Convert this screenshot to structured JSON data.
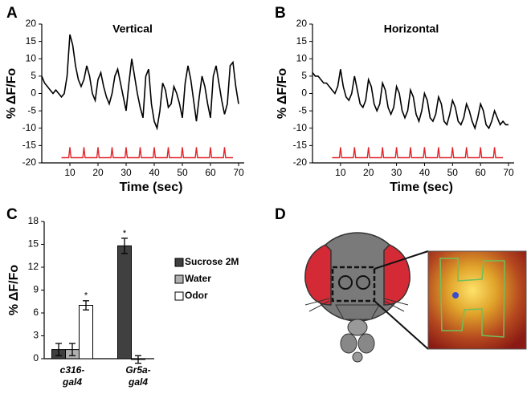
{
  "panels": [
    "A",
    "B",
    "C",
    "D"
  ],
  "chart_data": [
    {
      "type": "line",
      "title": "Vertical",
      "xlabel": "Time (sec)",
      "ylabel": "% ΔF/Fo",
      "xlim": [
        0,
        72
      ],
      "xticks": [
        10,
        20,
        30,
        40,
        50,
        60,
        70
      ],
      "ylim": [
        -20,
        20
      ],
      "yticks": [
        -20,
        -15,
        -10,
        -5,
        0,
        5,
        10,
        15,
        20
      ],
      "series": [
        {
          "color": "#000000",
          "x": [
            0,
            1,
            2,
            3,
            4,
            5,
            6,
            7,
            8,
            9,
            10,
            11,
            12,
            13,
            14,
            15,
            16,
            17,
            18,
            19,
            20,
            21,
            22,
            23,
            24,
            25,
            26,
            27,
            28,
            29,
            30,
            31,
            32,
            33,
            34,
            35,
            36,
            37,
            38,
            39,
            40,
            41,
            42,
            43,
            44,
            45,
            46,
            47,
            48,
            49,
            50,
            51,
            52,
            53,
            54,
            55,
            56,
            57,
            58,
            59,
            60,
            61,
            62,
            63,
            64,
            65,
            66,
            67,
            68,
            69,
            70
          ],
          "values": [
            5,
            3,
            2,
            1,
            0,
            1,
            0,
            -1,
            0,
            5,
            17,
            14,
            8,
            4,
            2,
            4,
            8,
            5,
            0,
            -2,
            4,
            6,
            2,
            -1,
            -3,
            0,
            5,
            7,
            3,
            -1,
            -5,
            3,
            10,
            5,
            0,
            -4,
            -7,
            5,
            7,
            -3,
            -8,
            -10,
            -5,
            3,
            1,
            -4,
            -3,
            2,
            0,
            -3,
            -7,
            3,
            8,
            4,
            -2,
            -8,
            -1,
            5,
            2,
            -3,
            -7,
            5,
            8,
            3,
            -2,
            -6,
            -3,
            8,
            9,
            2,
            -3
          ]
        },
        {
          "color": "#e0262b",
          "x": [
            7,
            9.6,
            10,
            10.4,
            14.6,
            15,
            15.4,
            19.6,
            20,
            20.4,
            24.6,
            25,
            25.4,
            29.6,
            30,
            30.4,
            34.6,
            35,
            35.4,
            39.6,
            40,
            40.4,
            44.6,
            45,
            45.4,
            49.6,
            50,
            50.4,
            54.6,
            55,
            55.4,
            59.6,
            60,
            60.4,
            64.6,
            65,
            65.4,
            68
          ],
          "values": [
            -18.5,
            -18.5,
            -15.5,
            -18.5,
            -18.5,
            -15.5,
            -18.5,
            -18.5,
            -15.5,
            -18.5,
            -18.5,
            -15.5,
            -18.5,
            -18.5,
            -15.5,
            -18.5,
            -18.5,
            -15.5,
            -18.5,
            -18.5,
            -15.5,
            -18.5,
            -18.5,
            -15.5,
            -18.5,
            -18.5,
            -15.5,
            -18.5,
            -18.5,
            -15.5,
            -18.5,
            -18.5,
            -15.5,
            -18.5,
            -18.5,
            -15.5,
            -18.5,
            -18.5
          ]
        }
      ]
    },
    {
      "type": "line",
      "title": "Horizontal",
      "xlabel": "Time (sec)",
      "ylabel": "% ΔF/Fo",
      "xlim": [
        0,
        72
      ],
      "xticks": [
        10,
        20,
        30,
        40,
        50,
        60,
        70
      ],
      "ylim": [
        -20,
        20
      ],
      "yticks": [
        -20,
        -15,
        -10,
        -5,
        0,
        5,
        10,
        15,
        20
      ],
      "series": [
        {
          "color": "#000000",
          "x": [
            0,
            1,
            2,
            3,
            4,
            5,
            6,
            7,
            8,
            9,
            10,
            11,
            12,
            13,
            14,
            15,
            16,
            17,
            18,
            19,
            20,
            21,
            22,
            23,
            24,
            25,
            26,
            27,
            28,
            29,
            30,
            31,
            32,
            33,
            34,
            35,
            36,
            37,
            38,
            39,
            40,
            41,
            42,
            43,
            44,
            45,
            46,
            47,
            48,
            49,
            50,
            51,
            52,
            53,
            54,
            55,
            56,
            57,
            58,
            59,
            60,
            61,
            62,
            63,
            64,
            65,
            66,
            67,
            68,
            69,
            70
          ],
          "values": [
            6,
            5,
            5,
            4,
            3,
            3,
            2,
            1,
            0,
            2,
            7,
            2,
            -1,
            -2,
            0,
            5,
            1,
            -3,
            -4,
            -2,
            4,
            2,
            -3,
            -5,
            -3,
            3,
            1,
            -4,
            -6,
            -4,
            2,
            0,
            -5,
            -7,
            -5,
            1,
            -1,
            -6,
            -8,
            -5,
            0,
            -2,
            -7,
            -8,
            -6,
            -1,
            -3,
            -8,
            -9,
            -6,
            -2,
            -4,
            -8,
            -9,
            -7,
            -3,
            -5,
            -8,
            -10,
            -7,
            -3,
            -5,
            -9,
            -10,
            -8,
            -5,
            -7,
            -9,
            -8,
            -9,
            -9
          ]
        },
        {
          "color": "#e0262b",
          "x": [
            7,
            9.6,
            10,
            10.4,
            14.6,
            15,
            15.4,
            19.6,
            20,
            20.4,
            24.6,
            25,
            25.4,
            29.6,
            30,
            30.4,
            34.6,
            35,
            35.4,
            39.6,
            40,
            40.4,
            44.6,
            45,
            45.4,
            49.6,
            50,
            50.4,
            54.6,
            55,
            55.4,
            59.6,
            60,
            60.4,
            64.6,
            65,
            65.4,
            68
          ],
          "values": [
            -18.5,
            -18.5,
            -15.5,
            -18.5,
            -18.5,
            -15.5,
            -18.5,
            -18.5,
            -15.5,
            -18.5,
            -18.5,
            -15.5,
            -18.5,
            -18.5,
            -15.5,
            -18.5,
            -18.5,
            -15.5,
            -18.5,
            -18.5,
            -15.5,
            -18.5,
            -18.5,
            -15.5,
            -18.5,
            -18.5,
            -15.5,
            -18.5,
            -18.5,
            -15.5,
            -18.5,
            -18.5,
            -15.5,
            -18.5,
            -18.5,
            -15.5,
            -18.5,
            -18.5
          ]
        }
      ]
    },
    {
      "type": "bar",
      "ylabel": "% ΔF/Fo",
      "categories": [
        [
          "c316-",
          "gal4"
        ],
        [
          "Gr5a-",
          "gal4"
        ]
      ],
      "ylim": [
        0,
        18
      ],
      "yticks": [
        0,
        3,
        6,
        9,
        12,
        15,
        18
      ],
      "series": [
        {
          "name": "Sucrose 2M",
          "color": "#404040",
          "values": [
            1.2,
            14.8
          ],
          "errors": [
            0.8,
            1.0
          ]
        },
        {
          "name": "Water",
          "color": "#b0b0b0",
          "values": [
            1.2,
            -0.1
          ],
          "errors": [
            0.8,
            0.5
          ]
        },
        {
          "name": "Odor",
          "color": "#ffffff",
          "values": [
            7.0,
            null
          ],
          "errors": [
            0.6,
            null
          ]
        }
      ],
      "annotations": [
        {
          "text": "*",
          "series": 2,
          "category": 0
        },
        {
          "text": "*",
          "series": 0,
          "category": 1
        }
      ]
    }
  ]
}
